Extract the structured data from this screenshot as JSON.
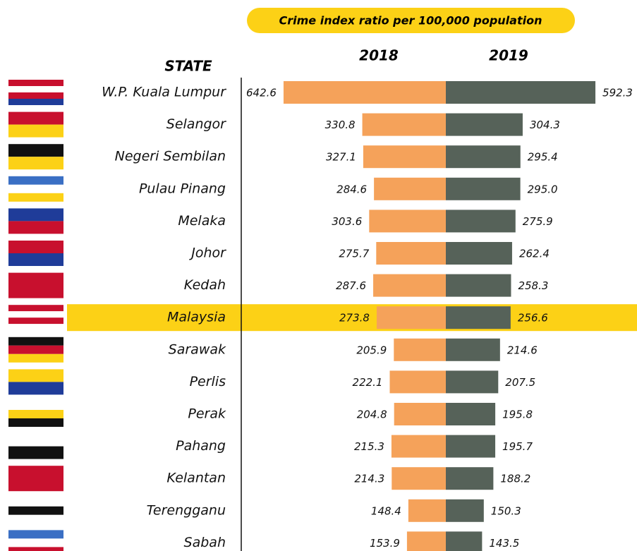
{
  "chart_data": {
    "type": "butterfly",
    "title": "Crime index ratio per 100,000 population",
    "category_header": "STATE",
    "categories": [
      "W.P. Kuala Lumpur",
      "Selangor",
      "Negeri Sembilan",
      "Pulau Pinang",
      "Melaka",
      "Johor",
      "Kedah",
      "Malaysia",
      "Sarawak",
      "Perlis",
      "Perak",
      "Pahang",
      "Kelantan",
      "Terengganu",
      "Sabah"
    ],
    "series": [
      {
        "name": "2018",
        "color": "#f5a25a",
        "values": [
          642.6,
          330.8,
          327.1,
          284.6,
          303.6,
          275.7,
          287.6,
          273.8,
          205.9,
          222.1,
          204.8,
          215.3,
          214.3,
          148.4,
          153.9
        ],
        "value_labels": [
          "642.6",
          "330.8",
          "327.1",
          "284.6",
          "303.6",
          "275.7",
          "287.6",
          "273.8",
          "205.9",
          "222.1",
          "204.8",
          "215.3",
          "214.3",
          "148.4",
          "153.9"
        ]
      },
      {
        "name": "2019",
        "color": "#566259",
        "values": [
          592.3,
          304.3,
          295.4,
          295.0,
          275.9,
          262.4,
          258.3,
          256.6,
          214.6,
          207.5,
          195.8,
          195.7,
          188.2,
          150.3,
          143.5
        ],
        "value_labels": [
          "592.3",
          "304.3",
          "295.4",
          "295.0",
          "275.9",
          "262.4",
          "258.3",
          "256.6",
          "214.6",
          "207.5",
          "195.8",
          "195.7",
          "188.2",
          "150.3",
          "143.5"
        ]
      }
    ],
    "highlight": "Malaysia",
    "highlight_color": "#fcd116"
  }
}
